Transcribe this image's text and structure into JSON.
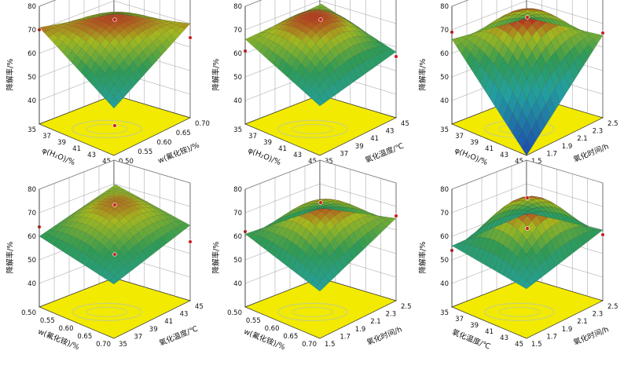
{
  "figure": {
    "z_label": "降解率/%",
    "z_ticks": [
      "40",
      "50",
      "60",
      "70",
      "80"
    ],
    "colors": {
      "floor": "#f2ea00",
      "grid": "#9a9a9a",
      "contour": "#c8d27a",
      "surface_low": "#1c3fb0",
      "surface_mid": "#2f9a55",
      "surface_high": "#b7321e",
      "design_point": "#cc2222"
    }
  },
  "chart_data": [
    {
      "type": "surface",
      "panel": "a",
      "x_label": "w(氟化铵)/%",
      "x_ticks": [
        "0.50",
        "0.55",
        "0.60",
        "0.65",
        "0.70"
      ],
      "x_range": [
        0.5,
        0.7
      ],
      "y_label": "φ(H₂O)/%",
      "y_ticks": [
        "35",
        "37",
        "39",
        "41",
        "43",
        "45"
      ],
      "y_range": [
        35,
        45
      ],
      "z_label": "降解率/%",
      "z_range": [
        30,
        80
      ],
      "corners": {
        "x_low_y_low": 50,
        "x_high_y_low": 70,
        "x_low_y_high": 71,
        "x_high_y_high": 61
      },
      "center": 72,
      "design_points": [
        [
          0.6,
          40,
          73
        ],
        [
          0.7,
          35,
          64
        ],
        [
          0.5,
          45,
          70
        ],
        [
          0.6,
          40,
          28
        ]
      ]
    },
    {
      "type": "surface",
      "panel": "b",
      "x_label": "氧化温度/℃",
      "x_ticks": [
        "35",
        "37",
        "39",
        "41",
        "43",
        "45"
      ],
      "x_range": [
        35,
        45
      ],
      "y_label": "φ(H₂O)/%",
      "y_ticks": [
        "35",
        "37",
        "39",
        "41",
        "43",
        "45"
      ],
      "y_range": [
        35,
        45
      ],
      "z_label": "降解率/%",
      "z_range": [
        30,
        80
      ],
      "corners": {
        "x_low_y_low": 51,
        "x_high_y_low": 58,
        "x_low_y_high": 66,
        "x_high_y_high": 65
      },
      "center": 72,
      "design_points": [
        [
          40,
          40,
          73
        ],
        [
          45,
          35,
          56
        ],
        [
          35,
          45,
          61
        ]
      ]
    },
    {
      "type": "surface",
      "panel": "c",
      "x_label": "氧化时间/h",
      "x_ticks": [
        "1.5",
        "1.7",
        "1.9",
        "2.1",
        "2.3",
        "2.5"
      ],
      "x_range": [
        1.5,
        2.5
      ],
      "y_label": "φ(H₂O)/%",
      "y_ticks": [
        "35",
        "37",
        "39",
        "41",
        "43",
        "45"
      ],
      "y_range": [
        35,
        45
      ],
      "z_label": "降解率/%",
      "z_range": [
        30,
        80
      ],
      "corners": {
        "x_low_y_low": 30,
        "x_high_y_low": 65,
        "x_low_y_high": 66,
        "x_high_y_high": 59
      },
      "center": 73,
      "design_points": [
        [
          2.0,
          40,
          74
        ],
        [
          2.5,
          35,
          66
        ],
        [
          1.5,
          45,
          69
        ]
      ]
    },
    {
      "type": "surface",
      "panel": "d",
      "x_label": "氧化温度/℃",
      "x_ticks": [
        "35",
        "37",
        "39",
        "41",
        "43",
        "45"
      ],
      "x_range": [
        35,
        45
      ],
      "y_label": "w(氟化铵)/%",
      "y_ticks": [
        "0.50",
        "0.55",
        "0.60",
        "0.65",
        "0.70"
      ],
      "y_range": [
        0.5,
        0.7
      ],
      "z_label": "降解率/%",
      "z_range": [
        30,
        80
      ],
      "corners": {
        "x_low_y_low": 53,
        "x_high_y_low": 62,
        "x_low_y_high": 60,
        "x_high_y_high": 66
      },
      "center": 70,
      "design_points": [
        [
          40,
          0.6,
          72
        ],
        [
          45,
          0.5,
          55
        ],
        [
          35,
          0.7,
          64
        ],
        [
          40,
          0.6,
          51
        ]
      ]
    },
    {
      "type": "surface",
      "panel": "e",
      "x_label": "氧化时间/h",
      "x_ticks": [
        "1.5",
        "1.7",
        "1.9",
        "2.1",
        "2.3",
        "2.5"
      ],
      "x_range": [
        1.5,
        2.5
      ],
      "y_label": "w(氟化铵)/%",
      "y_ticks": [
        "0.50",
        "0.55",
        "0.60",
        "0.65",
        "0.70"
      ],
      "y_range": [
        0.5,
        0.7
      ],
      "z_label": "降解率/%",
      "z_range": [
        30,
        80
      ],
      "corners": {
        "x_low_y_low": 50,
        "x_high_y_low": 65,
        "x_low_y_high": 61,
        "x_high_y_high": 56
      },
      "center": 72,
      "design_points": [
        [
          2.0,
          0.6,
          73
        ],
        [
          2.5,
          0.5,
          66
        ],
        [
          1.5,
          0.7,
          62
        ]
      ]
    },
    {
      "type": "surface",
      "panel": "f",
      "x_label": "氧化时间/h",
      "x_ticks": [
        "1.5",
        "1.7",
        "1.9",
        "2.1",
        "2.3",
        "2.5"
      ],
      "x_range": [
        1.5,
        2.5
      ],
      "y_label": "氧化温度/℃",
      "y_ticks": [
        "35",
        "37",
        "39",
        "41",
        "43",
        "45"
      ],
      "y_range": [
        35,
        45
      ],
      "z_label": "降解率/%",
      "z_range": [
        30,
        80
      ],
      "corners": {
        "x_low_y_low": 51,
        "x_high_y_low": 60,
        "x_low_y_high": 56,
        "x_high_y_high": 54
      },
      "center": 74,
      "design_points": [
        [
          2.0,
          40,
          75
        ],
        [
          2.5,
          35,
          58
        ],
        [
          1.5,
          45,
          54
        ],
        [
          2.0,
          40,
          62
        ]
      ]
    }
  ]
}
